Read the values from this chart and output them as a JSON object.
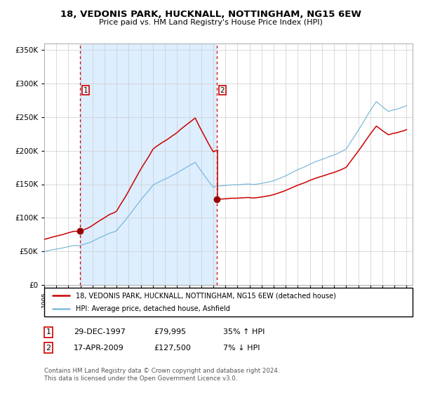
{
  "title": "18, VEDONIS PARK, HUCKNALL, NOTTINGHAM, NG15 6EW",
  "subtitle": "Price paid vs. HM Land Registry's House Price Index (HPI)",
  "legend_line1": "18, VEDONIS PARK, HUCKNALL, NOTTINGHAM, NG15 6EW (detached house)",
  "legend_line2": "HPI: Average price, detached house, Ashfield",
  "annotation1_label": "1",
  "annotation1_date": "29-DEC-1997",
  "annotation1_price": "£79,995",
  "annotation1_hpi": "35% ↑ HPI",
  "annotation2_label": "2",
  "annotation2_date": "17-APR-2009",
  "annotation2_price": "£127,500",
  "annotation2_hpi": "7% ↓ HPI",
  "footnote1": "Contains HM Land Registry data © Crown copyright and database right 2024.",
  "footnote2": "This data is licensed under the Open Government Licence v3.0.",
  "sale1_year": 1997.99,
  "sale1_value": 79995,
  "sale2_year": 2009.3,
  "sale2_value": 127500,
  "hpi_color": "#6baed6",
  "price_color": "#cc0000",
  "shade_color": "#ddeeff",
  "vline_color": "#cc0000",
  "marker_color": "#990000",
  "box_edge_color": "#cc0000",
  "grid_color": "#cccccc",
  "ylim": [
    0,
    360000
  ],
  "yticks": [
    0,
    50000,
    100000,
    150000,
    200000,
    250000,
    300000,
    350000
  ],
  "xlim_start": 1995.0,
  "xlim_end": 2025.5
}
